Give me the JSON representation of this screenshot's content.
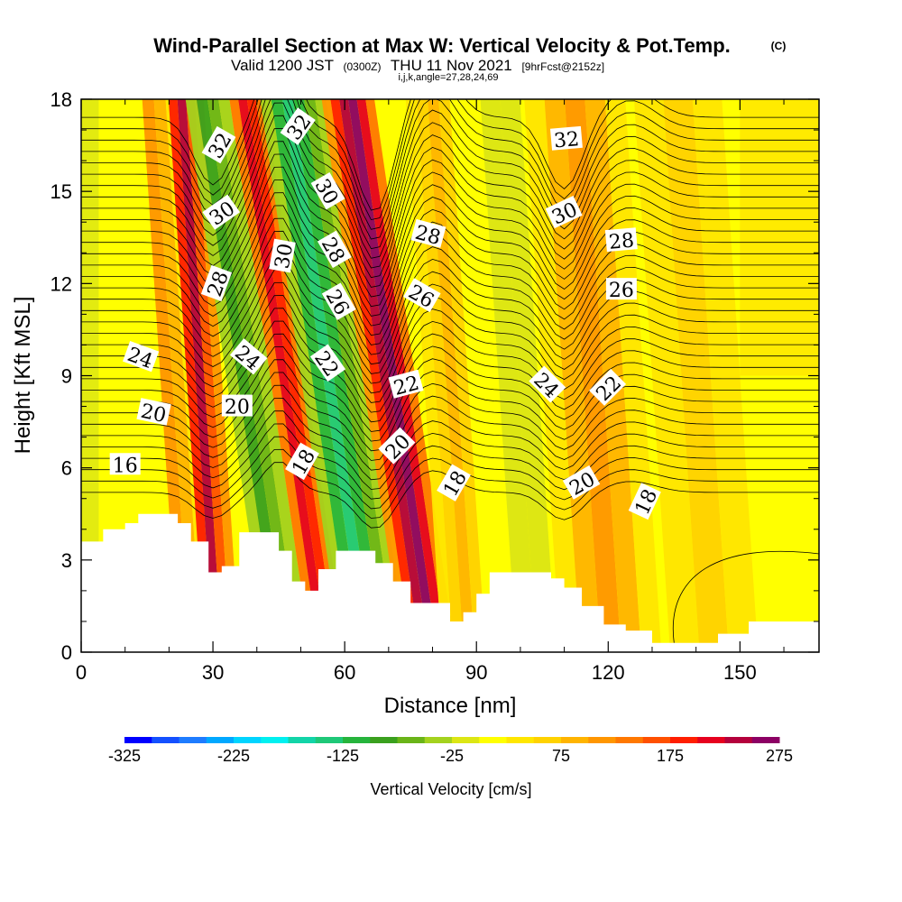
{
  "chart_data": {
    "type": "heatmap",
    "title": "Wind-Parallel Section at Max W: Vertical Velocity & Pot.Temp.",
    "copyright": "(C)",
    "subtitle_main": "Valid 1200 JST",
    "subtitle_utc": "(0300Z)",
    "subtitle_date": "THU 11 Nov 2021",
    "subtitle_fcst": "[9hrFcst@2152z]",
    "subtitle2": "i,j,k,angle=27,28,24,69",
    "xlabel": "Distance [nm]",
    "ylabel": "Height [Kft MSL]",
    "xlim": [
      0,
      168
    ],
    "ylim": [
      0,
      18
    ],
    "x_ticks": [
      0,
      30,
      60,
      90,
      120,
      150
    ],
    "y_ticks": [
      0,
      3,
      6,
      9,
      12,
      15,
      18
    ],
    "colorbar": {
      "label": "Vertical Velocity [cm/s]",
      "min": -325,
      "max": 275,
      "step": 25,
      "tick_values": [
        -325,
        -225,
        -125,
        -25,
        75,
        175,
        275
      ],
      "tick_labels": [
        "-325",
        "-225",
        "-125",
        "-25",
        "75",
        "175",
        "275"
      ],
      "colors": [
        "#0000ff",
        "#1450ff",
        "#1e7cff",
        "#00a8ff",
        "#00d4ff",
        "#00f0f0",
        "#12d4a8",
        "#1ec878",
        "#26b43c",
        "#3aa01e",
        "#6ab418",
        "#a4d21e",
        "#dce614",
        "#ffff00",
        "#ffe600",
        "#ffd200",
        "#ffb400",
        "#ff9600",
        "#ff7800",
        "#ff5000",
        "#ff1e00",
        "#e6001e",
        "#b4003c",
        "#8c0064"
      ]
    },
    "terrain": [
      [
        0,
        3.6
      ],
      [
        5,
        3.6
      ],
      [
        5,
        4.0
      ],
      [
        10,
        4.0
      ],
      [
        10,
        4.2
      ],
      [
        13,
        4.2
      ],
      [
        13,
        4.5
      ],
      [
        22,
        4.5
      ],
      [
        22,
        4.2
      ],
      [
        25,
        4.2
      ],
      [
        25,
        3.6
      ],
      [
        29,
        3.6
      ],
      [
        29,
        2.6
      ],
      [
        32,
        2.6
      ],
      [
        32,
        2.8
      ],
      [
        36,
        2.8
      ],
      [
        36,
        3.9
      ],
      [
        45,
        3.9
      ],
      [
        45,
        3.3
      ],
      [
        48,
        3.3
      ],
      [
        48,
        2.3
      ],
      [
        51,
        2.3
      ],
      [
        51,
        2.0
      ],
      [
        54,
        2.0
      ],
      [
        54,
        2.7
      ],
      [
        58,
        2.7
      ],
      [
        58,
        3.3
      ],
      [
        67,
        3.3
      ],
      [
        67,
        2.9
      ],
      [
        71,
        2.9
      ],
      [
        71,
        2.3
      ],
      [
        75,
        2.3
      ],
      [
        75,
        1.6
      ],
      [
        84,
        1.6
      ],
      [
        84,
        1.0
      ],
      [
        87,
        1.0
      ],
      [
        87,
        1.3
      ],
      [
        90,
        1.3
      ],
      [
        90,
        1.9
      ],
      [
        93,
        1.9
      ],
      [
        93,
        2.6
      ],
      [
        107,
        2.6
      ],
      [
        107,
        2.4
      ],
      [
        110,
        2.4
      ],
      [
        110,
        2.1
      ],
      [
        114,
        2.1
      ],
      [
        114,
        1.5
      ],
      [
        119,
        1.5
      ],
      [
        119,
        0.9
      ],
      [
        124,
        0.9
      ],
      [
        124,
        0.7
      ],
      [
        130,
        0.7
      ],
      [
        130,
        0.3
      ],
      [
        145,
        0.3
      ],
      [
        145,
        0.6
      ],
      [
        152,
        0.6
      ],
      [
        152,
        1.0
      ],
      [
        168,
        1.0
      ]
    ],
    "isentrope_levels": [
      16,
      18,
      20,
      22,
      24,
      26,
      28,
      30,
      32
    ],
    "isentrope_labels": [
      {
        "text": "16",
        "x": 10,
        "y": 6.1,
        "angle": 0
      },
      {
        "text": "20",
        "x": 16.5,
        "y": 7.8,
        "angle": 12
      },
      {
        "text": "24",
        "x": 13.5,
        "y": 9.6,
        "angle": 20
      },
      {
        "text": "28",
        "x": 31,
        "y": 12.0,
        "angle": -70
      },
      {
        "text": "30",
        "x": 32,
        "y": 14.3,
        "angle": -35
      },
      {
        "text": "32",
        "x": 31.5,
        "y": 16.5,
        "angle": -60
      },
      {
        "text": "20",
        "x": 35.5,
        "y": 8.0,
        "angle": 0
      },
      {
        "text": "24",
        "x": 38,
        "y": 9.6,
        "angle": 40
      },
      {
        "text": "30",
        "x": 46,
        "y": 12.9,
        "angle": -80
      },
      {
        "text": "18",
        "x": 50.5,
        "y": 6.2,
        "angle": -60
      },
      {
        "text": "32",
        "x": 49.5,
        "y": 17.1,
        "angle": -55
      },
      {
        "text": "30",
        "x": 56,
        "y": 15.0,
        "angle": 60
      },
      {
        "text": "28",
        "x": 57.5,
        "y": 13.1,
        "angle": 60
      },
      {
        "text": "26",
        "x": 58.5,
        "y": 11.4,
        "angle": 60
      },
      {
        "text": "22",
        "x": 56,
        "y": 9.4,
        "angle": 55
      },
      {
        "text": "20",
        "x": 72,
        "y": 6.7,
        "angle": -45
      },
      {
        "text": "22",
        "x": 74,
        "y": 8.7,
        "angle": -15
      },
      {
        "text": "26",
        "x": 77.5,
        "y": 11.6,
        "angle": 30
      },
      {
        "text": "28",
        "x": 79,
        "y": 13.6,
        "angle": 15
      },
      {
        "text": "18",
        "x": 85,
        "y": 5.5,
        "angle": -60
      },
      {
        "text": "32",
        "x": 110.5,
        "y": 16.7,
        "angle": -5
      },
      {
        "text": "30",
        "x": 110,
        "y": 14.3,
        "angle": -25
      },
      {
        "text": "24",
        "x": 106,
        "y": 8.7,
        "angle": 45
      },
      {
        "text": "20",
        "x": 114,
        "y": 5.5,
        "angle": -30
      },
      {
        "text": "28",
        "x": 123,
        "y": 13.4,
        "angle": -5
      },
      {
        "text": "26",
        "x": 123,
        "y": 11.8,
        "angle": 0
      },
      {
        "text": "22",
        "x": 120,
        "y": 8.6,
        "angle": -45
      },
      {
        "text": "18",
        "x": 128.5,
        "y": 4.9,
        "angle": -65
      }
    ]
  }
}
